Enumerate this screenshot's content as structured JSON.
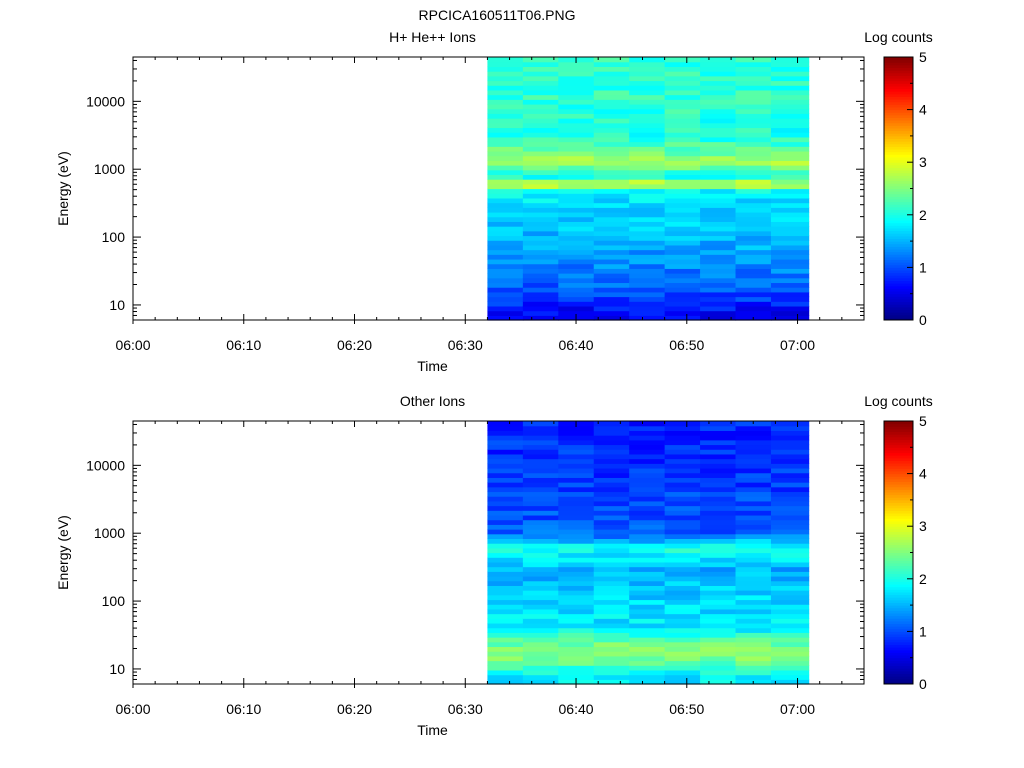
{
  "figure": {
    "title": "RPCICA160511T06.PNG"
  },
  "chart_data": [
    {
      "type": "heatmap",
      "title": "H+ He++ Ions",
      "xlabel": "Time",
      "ylabel": "Energy (eV)",
      "x_ticks": [
        "06:00",
        "06:10",
        "06:20",
        "06:30",
        "06:40",
        "06:50",
        "07:00"
      ],
      "y_ticks": [
        "10",
        "100",
        "1000",
        "10000"
      ],
      "y_scale": "log",
      "colorbar": {
        "label": "Log counts",
        "ticks": [
          "0",
          "1",
          "2",
          "3",
          "4",
          "5"
        ],
        "range": [
          0,
          5
        ]
      },
      "x_range_minutes": [
        0,
        66
      ],
      "data_x_range_minutes": [
        32,
        61
      ],
      "ylim_eV": [
        6,
        45000
      ],
      "data_time_bins_minutes": [
        32.0,
        35.2,
        38.4,
        41.6,
        44.8,
        48.0,
        51.2,
        54.4,
        57.6,
        61.0
      ],
      "energy_profile_log_counts": [
        {
          "eV": 8,
          "value": 0.6
        },
        {
          "eV": 12,
          "value": 0.9
        },
        {
          "eV": 20,
          "value": 1.1
        },
        {
          "eV": 40,
          "value": 1.3
        },
        {
          "eV": 80,
          "value": 1.5
        },
        {
          "eV": 150,
          "value": 1.6
        },
        {
          "eV": 300,
          "value": 1.7
        },
        {
          "eV": 500,
          "value": 1.9
        },
        {
          "eV": 600,
          "value": 3.1
        },
        {
          "eV": 800,
          "value": 1.9
        },
        {
          "eV": 1250,
          "value": 2.7
        },
        {
          "eV": 3000,
          "value": 2.0
        },
        {
          "eV": 10000,
          "value": 2.1
        },
        {
          "eV": 40000,
          "value": 2.1
        }
      ]
    },
    {
      "type": "heatmap",
      "title": "Other Ions",
      "xlabel": "Time",
      "ylabel": "Energy (eV)",
      "x_ticks": [
        "06:00",
        "06:10",
        "06:20",
        "06:30",
        "06:40",
        "06:50",
        "07:00"
      ],
      "y_ticks": [
        "10",
        "100",
        "1000",
        "10000"
      ],
      "y_scale": "log",
      "colorbar": {
        "label": "Log counts",
        "ticks": [
          "0",
          "1",
          "2",
          "3",
          "4",
          "5"
        ],
        "range": [
          0,
          5
        ]
      },
      "x_range_minutes": [
        0,
        66
      ],
      "data_x_range_minutes": [
        32,
        61
      ],
      "ylim_eV": [
        6,
        45000
      ],
      "data_time_bins_minutes": [
        32.0,
        35.2,
        38.4,
        41.6,
        44.8,
        48.0,
        51.2,
        54.4,
        57.6,
        61.0
      ],
      "energy_profile_log_counts": [
        {
          "eV": 8,
          "value": 1.8
        },
        {
          "eV": 15,
          "value": 2.5
        },
        {
          "eV": 25,
          "value": 2.4
        },
        {
          "eV": 40,
          "value": 1.8
        },
        {
          "eV": 100,
          "value": 1.7
        },
        {
          "eV": 300,
          "value": 1.5
        },
        {
          "eV": 600,
          "value": 2.0
        },
        {
          "eV": 1000,
          "value": 1.1
        },
        {
          "eV": 5000,
          "value": 0.9
        },
        {
          "eV": 40000,
          "value": 0.8
        }
      ]
    }
  ]
}
